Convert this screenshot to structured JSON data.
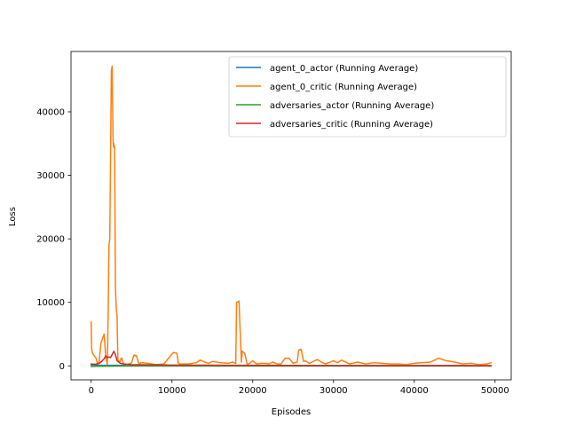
{
  "chart_data": {
    "type": "line",
    "title": "",
    "xlabel": "Episodes",
    "ylabel": "Loss",
    "xlim": [
      -2500,
      52000
    ],
    "ylim": [
      -2200,
      49500
    ],
    "xticks": [
      0,
      10000,
      20000,
      30000,
      40000,
      50000
    ],
    "xtick_labels": [
      "0",
      "10000",
      "20000",
      "30000",
      "40000",
      "50000"
    ],
    "yticks": [
      0,
      10000,
      20000,
      30000,
      40000
    ],
    "ytick_labels": [
      "0",
      "10000",
      "20000",
      "30000",
      "40000"
    ],
    "grid": false,
    "legend_position": "top-right",
    "series": [
      {
        "name": "agent_0_actor (Running Average)",
        "color": "#1f77b4",
        "x": [
          0,
          500,
          1000,
          2000,
          3000,
          5000,
          10000,
          20000,
          30000,
          40000,
          49500
        ],
        "y": [
          150,
          120,
          100,
          90,
          80,
          60,
          50,
          40,
          40,
          30,
          30
        ]
      },
      {
        "name": "agent_0_critic (Running Average)",
        "color": "#ff7f0e",
        "x": [
          0,
          50,
          150,
          300,
          600,
          800,
          1000,
          1200,
          1400,
          1600,
          1800,
          2000,
          2100,
          2200,
          2300,
          2400,
          2500,
          2600,
          2700,
          2750,
          2800,
          2850,
          2900,
          3000,
          3100,
          3200,
          3300,
          3400,
          3500,
          3600,
          3700,
          3800,
          4000,
          4500,
          5000,
          5300,
          5600,
          5900,
          6200,
          7000,
          8000,
          9000,
          10000,
          10200,
          10600,
          10800,
          11000,
          12000,
          13000,
          13500,
          14500,
          15000,
          16000,
          17000,
          17500,
          17900,
          18000,
          18300,
          18600,
          18700,
          19000,
          19300,
          19500,
          20000,
          20500,
          21000,
          21500,
          22000,
          22500,
          23000,
          23500,
          24000,
          24500,
          25000,
          25500,
          25700,
          26000,
          26300,
          26500,
          27000,
          27500,
          28000,
          28500,
          29000,
          30000,
          30500,
          31000,
          32000,
          33000,
          34000,
          35000,
          36000,
          37000,
          38000,
          39000,
          40000,
          41000,
          42000,
          43000,
          43500,
          44000,
          45000,
          46000,
          47000,
          48000,
          49000,
          49500
        ],
        "y": [
          6900,
          2800,
          2000,
          1700,
          1200,
          300,
          800,
          3600,
          4300,
          5000,
          1500,
          200,
          8000,
          19000,
          20000,
          33000,
          46500,
          47200,
          36000,
          34500,
          35000,
          34300,
          34500,
          12500,
          9000,
          8000,
          1000,
          800,
          700,
          700,
          1200,
          1200,
          300,
          200,
          500,
          1700,
          1600,
          300,
          500,
          400,
          200,
          300,
          1900,
          2100,
          2000,
          400,
          300,
          300,
          500,
          900,
          400,
          700,
          500,
          400,
          600,
          400,
          10000,
          10200,
          600,
          2300,
          2000,
          300,
          300,
          800,
          300,
          400,
          400,
          300,
          600,
          300,
          300,
          1200,
          1200,
          400,
          600,
          2500,
          2600,
          700,
          800,
          400,
          700,
          1000,
          600,
          300,
          800,
          500,
          900,
          300,
          600,
          300,
          500,
          400,
          300,
          300,
          200,
          400,
          500,
          600,
          1200,
          1000,
          800,
          600,
          300,
          400,
          200,
          300,
          500
        ]
      },
      {
        "name": "adversaries_actor (Running Average)",
        "color": "#2ca02c",
        "x": [
          0,
          1000,
          2000,
          3000,
          5000,
          10000,
          20000,
          30000,
          40000,
          49500
        ],
        "y": [
          -100,
          -60,
          -50,
          -30,
          -20,
          -10,
          -10,
          -10,
          -10,
          -10
        ]
      },
      {
        "name": "adversaries_critic (Running Average)",
        "color": "#d62728",
        "x": [
          0,
          500,
          1000,
          1300,
          1600,
          1800,
          2000,
          2200,
          2400,
          2600,
          2800,
          3000,
          3200,
          3400,
          3600,
          4000,
          5000,
          6000,
          8000,
          10000,
          15000,
          20000,
          30000,
          40000,
          49500
        ],
        "y": [
          300,
          250,
          400,
          700,
          1100,
          1600,
          1300,
          1400,
          1300,
          1800,
          2300,
          1800,
          800,
          600,
          400,
          300,
          200,
          180,
          150,
          120,
          100,
          80,
          60,
          50,
          40
        ]
      }
    ]
  }
}
